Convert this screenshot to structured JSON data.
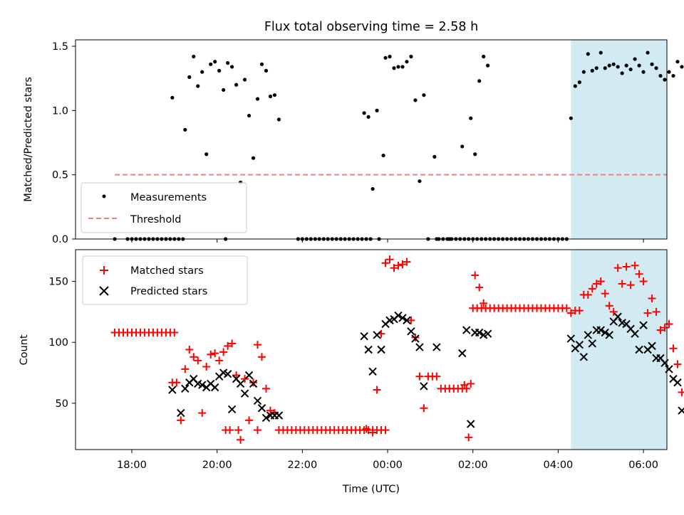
{
  "figure": {
    "title": "Flux total observing time = 2.58 h",
    "xlabel": "Time (UTC)",
    "x_ticks": [
      "18:00",
      "20:00",
      "22:00",
      "00:00",
      "02:00",
      "04:00",
      "06:00"
    ],
    "x_tick_hours": [
      18,
      20,
      22,
      24,
      26,
      28,
      30
    ],
    "xlim_hours": [
      16.68,
      30.55
    ],
    "highlight_span_hours": [
      28.3,
      30.95
    ],
    "colors": {
      "measure": "#000000",
      "threshold": "#f08080",
      "matched": "#ff0000",
      "predicted": "#000000",
      "span": "#add8e6"
    }
  },
  "chart_data": [
    {
      "type": "scatter",
      "panel": "top",
      "ylabel": "Matched/Predicted stars",
      "ylim": [
        0,
        1.55
      ],
      "y_ticks": [
        "0.0",
        "0.5",
        "1.0",
        "1.5"
      ],
      "y_tick_values": [
        0,
        0.5,
        1.0,
        1.5
      ],
      "threshold": 0.5,
      "threshold_x_range": [
        17.6,
        30.95
      ],
      "legend": {
        "position": "lower-left",
        "entries": [
          "Measurements",
          "Threshold"
        ]
      },
      "series": [
        {
          "name": "Measurements",
          "x": [
            17.6,
            17.9,
            18.0,
            18.1,
            18.2,
            18.3,
            18.4,
            18.5,
            18.6,
            18.7,
            18.8,
            18.9,
            19.0,
            19.1,
            19.2,
            18.95,
            19.25,
            19.35,
            19.45,
            19.55,
            19.65,
            19.75,
            19.85,
            19.95,
            20.05,
            20.15,
            20.25,
            20.35,
            20.45,
            20.55,
            20.65,
            20.75,
            20.85,
            20.95,
            21.05,
            21.15,
            21.25,
            21.35,
            21.45,
            20.2,
            21.9,
            22.0,
            22.1,
            22.2,
            22.3,
            22.4,
            22.5,
            22.6,
            22.7,
            22.8,
            22.9,
            23.0,
            23.1,
            23.2,
            23.3,
            23.4,
            23.5,
            23.6,
            23.8,
            23.45,
            23.55,
            23.65,
            23.75,
            23.9,
            23.95,
            24.05,
            24.15,
            24.25,
            24.35,
            24.45,
            24.55,
            24.65,
            24.75,
            24.85,
            24.95,
            25.1,
            25.2,
            25.3,
            25.4,
            25.5,
            25.6,
            25.7,
            25.8,
            25.9,
            26.0,
            26.1,
            26.2,
            26.3,
            26.4,
            26.5,
            26.6,
            26.7,
            26.8,
            26.9,
            27.0,
            27.1,
            27.2,
            27.3,
            27.4,
            27.5,
            27.6,
            27.7,
            27.8,
            27.9,
            28.0,
            28.1,
            28.2,
            25.15,
            25.45,
            25.75,
            25.95,
            26.05,
            26.15,
            26.25,
            26.35,
            28.3,
            28.4,
            28.5,
            28.6,
            28.7,
            28.8,
            28.9,
            29.0,
            29.1,
            29.2,
            29.3,
            29.4,
            29.5,
            29.6,
            29.7,
            29.8,
            29.9,
            30.0,
            30.1,
            30.2,
            30.3,
            30.4,
            30.5,
            30.6,
            30.7,
            30.8,
            30.9
          ],
          "y": [
            0,
            0,
            0,
            0,
            0,
            0,
            0,
            0,
            0,
            0,
            0,
            0,
            0,
            0,
            0,
            1.1,
            0.85,
            1.26,
            1.42,
            1.19,
            1.3,
            0.66,
            1.36,
            1.38,
            1.31,
            1.16,
            1.37,
            1.34,
            1.2,
            0.44,
            1.24,
            0.96,
            0.63,
            1.09,
            1.36,
            1.31,
            1.11,
            1.12,
            0.93,
            0,
            0,
            0,
            0,
            0,
            0,
            0,
            0,
            0,
            0,
            0,
            0,
            0,
            0,
            0,
            0,
            0,
            0,
            0,
            0,
            0.98,
            0.95,
            0.39,
            1.0,
            0.65,
            1.41,
            1.42,
            1.33,
            1.34,
            1.34,
            1.38,
            1.42,
            1.08,
            0.45,
            1.12,
            0.0,
            0.64,
            0,
            0,
            0,
            0,
            0,
            0,
            0,
            0,
            0,
            0,
            0,
            0,
            0,
            0,
            0,
            0,
            0,
            0,
            0,
            0,
            0,
            0,
            0,
            0,
            0,
            0,
            0,
            0,
            0,
            0,
            0,
            0.0,
            0.0,
            0.72,
            0.94,
            0.66,
            1.23,
            1.42,
            1.35,
            0.94,
            1.19,
            1.22,
            1.3,
            1.44,
            1.31,
            1.33,
            1.45,
            1.33,
            1.35,
            1.36,
            1.34,
            1.29,
            1.35,
            1.32,
            1.4,
            1.35,
            1.3,
            1.45,
            1.36,
            1.33,
            1.27,
            1.24,
            1.3,
            1.27,
            1.38,
            1.34
          ]
        }
      ]
    },
    {
      "type": "scatter",
      "panel": "bottom",
      "ylabel": "Count",
      "ylim": [
        12,
        176
      ],
      "y_ticks": [
        "50",
        "100",
        "150"
      ],
      "y_tick_values": [
        50,
        100,
        150
      ],
      "legend": {
        "position": "top-left",
        "entries": [
          "Matched stars",
          "Predicted stars"
        ]
      },
      "series": [
        {
          "name": "Matched stars",
          "x": [
            17.6,
            17.7,
            17.8,
            17.9,
            18.0,
            18.1,
            18.2,
            18.3,
            18.4,
            18.5,
            18.6,
            18.7,
            18.8,
            18.9,
            19.0,
            18.95,
            19.05,
            19.15,
            19.25,
            19.35,
            19.45,
            19.55,
            19.65,
            19.75,
            19.85,
            19.95,
            20.05,
            20.15,
            20.25,
            20.35,
            20.45,
            20.55,
            20.65,
            20.75,
            20.85,
            20.95,
            21.05,
            21.15,
            21.25,
            21.35,
            20.2,
            20.3,
            20.5,
            20.95,
            21.45,
            21.55,
            21.65,
            21.75,
            21.85,
            21.95,
            22.05,
            22.15,
            22.25,
            22.35,
            22.45,
            22.55,
            22.65,
            22.75,
            22.85,
            22.95,
            23.05,
            23.15,
            23.25,
            23.35,
            23.45,
            23.55,
            23.65,
            23.75,
            23.85,
            23.95,
            23.5,
            23.65,
            23.75,
            23.85,
            23.95,
            24.05,
            24.15,
            24.25,
            24.35,
            24.45,
            24.55,
            24.65,
            24.75,
            24.85,
            24.95,
            25.05,
            25.15,
            25.25,
            25.35,
            25.45,
            25.55,
            25.65,
            25.75,
            25.85,
            25.95,
            25.8,
            26.0,
            26.1,
            26.2,
            26.3,
            26.4,
            26.5,
            26.6,
            26.7,
            26.8,
            26.9,
            27.0,
            27.1,
            27.2,
            27.3,
            27.4,
            27.5,
            27.6,
            27.7,
            27.8,
            27.9,
            28.0,
            28.1,
            28.2,
            25.9,
            26.05,
            26.15,
            26.25,
            28.3,
            28.4,
            28.5,
            28.6,
            28.7,
            28.8,
            28.9,
            29.0,
            29.1,
            29.2,
            29.3,
            29.4,
            29.5,
            29.6,
            29.7,
            29.8,
            29.9,
            30.0,
            30.1,
            30.2,
            30.3,
            30.4,
            30.5,
            30.6,
            30.7,
            30.8,
            30.9
          ],
          "y": [
            108,
            108,
            108,
            108,
            108,
            108,
            108,
            108,
            108,
            108,
            108,
            108,
            108,
            108,
            108,
            67,
            67,
            36,
            78,
            94,
            88,
            85,
            42,
            80,
            90,
            91,
            85,
            92,
            97,
            99,
            73,
            20,
            70,
            36,
            67,
            98,
            88,
            62,
            44,
            42,
            28,
            28,
            28,
            28,
            28,
            28,
            28,
            28,
            28,
            28,
            28,
            28,
            28,
            28,
            28,
            28,
            28,
            28,
            28,
            28,
            28,
            28,
            28,
            28,
            28,
            28,
            28,
            28,
            28,
            28,
            29,
            26,
            61,
            107,
            165,
            168,
            161,
            163,
            164,
            166,
            118,
            104,
            72,
            46,
            72,
            72,
            72,
            62,
            62,
            62,
            62,
            62,
            62,
            62,
            66,
            65,
            128,
            128,
            128,
            128,
            128,
            128,
            128,
            128,
            128,
            128,
            128,
            128,
            128,
            128,
            128,
            128,
            128,
            128,
            128,
            128,
            128,
            128,
            128,
            22,
            155,
            145,
            132,
            124,
            126,
            126,
            139,
            139,
            144,
            148,
            150,
            140,
            130,
            125,
            161,
            148,
            162,
            147,
            163,
            156,
            150,
            124,
            136,
            125,
            110,
            112,
            115,
            95,
            82,
            59
          ]
        },
        {
          "name": "Predicted stars",
          "x": [
            18.95,
            19.15,
            19.25,
            19.35,
            19.45,
            19.55,
            19.65,
            19.75,
            19.85,
            19.95,
            20.05,
            20.15,
            20.25,
            20.35,
            20.45,
            20.55,
            20.65,
            20.75,
            20.85,
            20.95,
            21.05,
            21.15,
            21.25,
            21.35,
            21.45,
            23.45,
            23.55,
            23.65,
            23.75,
            23.85,
            23.95,
            24.05,
            24.15,
            24.25,
            24.35,
            24.45,
            24.55,
            24.65,
            24.75,
            24.85,
            25.15,
            25.75,
            25.85,
            25.95,
            26.05,
            26.15,
            26.25,
            26.35,
            28.3,
            28.4,
            28.5,
            28.6,
            28.7,
            28.8,
            28.9,
            29.0,
            29.1,
            29.2,
            29.3,
            29.4,
            29.5,
            29.6,
            29.7,
            29.8,
            29.9,
            30.0,
            30.1,
            30.2,
            30.3,
            30.4,
            30.5,
            30.6,
            30.7,
            30.8,
            30.9
          ],
          "y": [
            61,
            42,
            62,
            67,
            70,
            66,
            65,
            63,
            66,
            63,
            72,
            75,
            74,
            45,
            70,
            66,
            58,
            73,
            66,
            52,
            46,
            38,
            40,
            40,
            40,
            105,
            94,
            76,
            106,
            94,
            115,
            118,
            119,
            122,
            120,
            118,
            109,
            103,
            96,
            64,
            96,
            91,
            110,
            33,
            108,
            108,
            106,
            107,
            103,
            95,
            98,
            88,
            106,
            99,
            110,
            110,
            108,
            106,
            117,
            121,
            116,
            115,
            111,
            107,
            94,
            114,
            94,
            97,
            87,
            87,
            83,
            78,
            70,
            67,
            44
          ]
        }
      ]
    }
  ]
}
